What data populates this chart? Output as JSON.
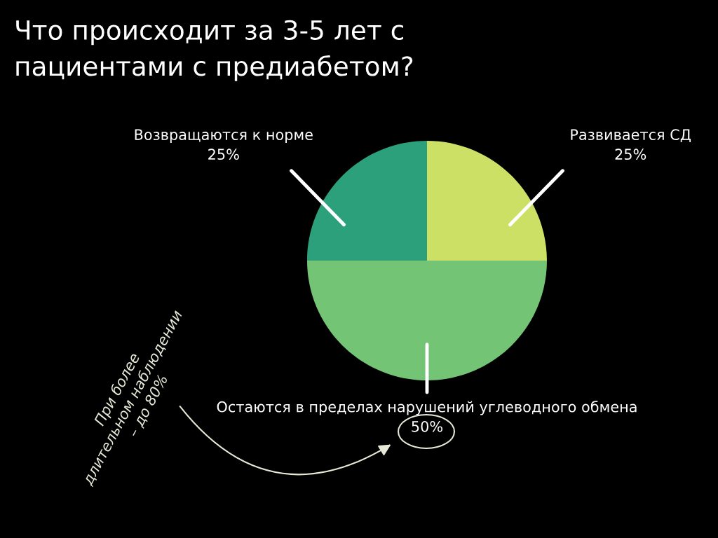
{
  "chart_data": {
    "type": "pie",
    "title": "Что происходит за 3-5 лет с\nпациентами с предиабетом?",
    "categories": [
      "Развивается СД",
      "Остаются в пределах нарушений углеводного обмена",
      "Возвращаются к норме"
    ],
    "values": [
      25,
      50,
      25
    ],
    "value_labels": [
      "25%",
      "50%",
      "25%"
    ],
    "colors": [
      "#cde066",
      "#74c476",
      "#2ca07a"
    ],
    "annotations": [
      "При более\nдлительном наблюдении\n– до 80%"
    ]
  }
}
